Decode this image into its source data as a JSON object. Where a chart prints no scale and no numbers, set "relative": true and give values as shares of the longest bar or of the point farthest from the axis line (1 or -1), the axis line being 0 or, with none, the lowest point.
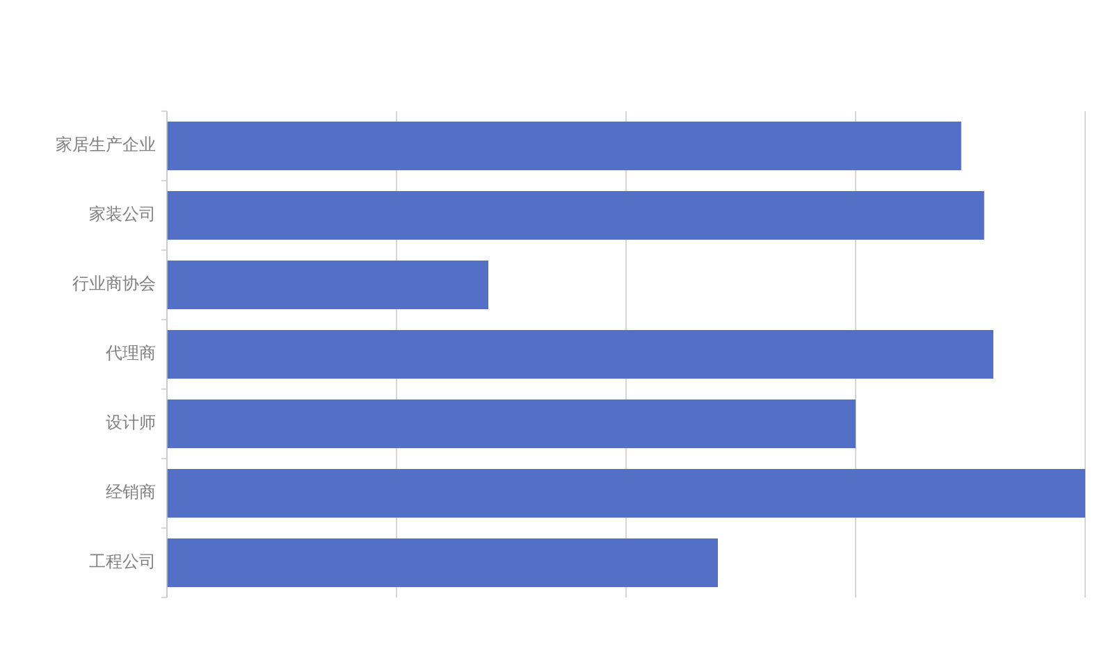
{
  "chart_data": {
    "type": "bar",
    "orientation": "horizontal",
    "relative": true,
    "categories": [
      "家居生产企业",
      "家装公司",
      "行业商协会",
      "代理商",
      "设计师",
      "经销商",
      "工程公司"
    ],
    "values": [
      0.865,
      0.89,
      0.35,
      0.9,
      0.75,
      1,
      0.6
    ],
    "color": "#5470c6",
    "grid": "x"
  }
}
